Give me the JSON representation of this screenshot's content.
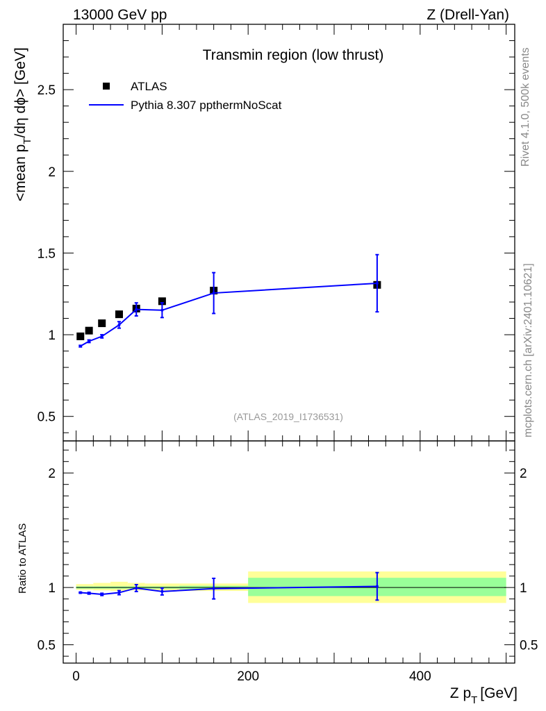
{
  "header": {
    "left_label": "13000 GeV pp",
    "right_label": "Z (Drell-Yan)"
  },
  "side_labels": {
    "rivet": "Rivet 4.1.0,  500k events",
    "mcplots": "mcplots.cern.ch [arXiv:2401.10621]"
  },
  "chart_data": {
    "type": "scatter",
    "title": "Transmin region (low thrust)",
    "analysis_id": "(ATLAS_2019_I1736531)",
    "xlabel": "Z p_T [GeV]",
    "xlabel_main": "Z p",
    "xlabel_sub": "T",
    "xlabel_unit": "[GeV]",
    "ylabel": "<mean p_T/dη dϕ> [GeV]",
    "ylabel_parts": [
      "<mean p",
      "T",
      "/dη dϕ> [GeV]"
    ],
    "xlim": [
      -15,
      510
    ],
    "ylim": [
      0.35,
      2.9
    ],
    "xticks": [
      0,
      200,
      400
    ],
    "xtick_labels": [
      "0",
      "200",
      "400"
    ],
    "yticks": [
      0.5,
      1,
      1.5,
      2,
      2.5
    ],
    "ytick_labels": [
      "0.5",
      "1",
      "1.5",
      "2",
      "2.5"
    ],
    "legend": {
      "position": "top-left",
      "entries": [
        "ATLAS",
        "Pythia 8.307 ppthermNoScat"
      ]
    },
    "series": [
      {
        "name": "ATLAS",
        "style": "markers",
        "x": [
          5,
          15,
          30,
          50,
          70,
          100,
          160,
          350
        ],
        "y": [
          0.99,
          1.025,
          1.07,
          1.125,
          1.16,
          1.205,
          1.27,
          1.305
        ]
      },
      {
        "name": "Pythia 8.307 ppthermNoScat",
        "style": "line",
        "x": [
          5,
          15,
          30,
          50,
          70,
          100,
          160,
          350
        ],
        "y": [
          0.93,
          0.96,
          0.99,
          1.06,
          1.155,
          1.15,
          1.255,
          1.315
        ],
        "err": [
          0.005,
          0.008,
          0.01,
          0.02,
          0.04,
          0.045,
          0.125,
          0.175
        ]
      }
    ],
    "ratio": {
      "ylabel": "Ratio to ATLAS",
      "ylim": [
        0.34,
        2.28
      ],
      "yticks": [
        0.5,
        1,
        2
      ],
      "ytick_labels": [
        "0.5",
        "1",
        "2"
      ],
      "bands": [
        {
          "x0": 0,
          "x1": 20,
          "inner": [
            0.99,
            1.01
          ],
          "outer": [
            0.98,
            1.03
          ]
        },
        {
          "x0": 20,
          "x1": 40,
          "inner": [
            0.99,
            1.01
          ],
          "outer": [
            0.975,
            1.04
          ]
        },
        {
          "x0": 40,
          "x1": 60,
          "inner": [
            0.99,
            1.01
          ],
          "outer": [
            0.97,
            1.05
          ]
        },
        {
          "x0": 60,
          "x1": 80,
          "inner": [
            0.99,
            1.01
          ],
          "outer": [
            0.975,
            1.04
          ]
        },
        {
          "x0": 80,
          "x1": 120,
          "inner": [
            0.99,
            1.01
          ],
          "outer": [
            0.975,
            1.035
          ]
        },
        {
          "x0": 120,
          "x1": 200,
          "inner": [
            0.985,
            1.015
          ],
          "outer": [
            0.97,
            1.035
          ]
        },
        {
          "x0": 200,
          "x1": 500,
          "inner": [
            0.925,
            1.085
          ],
          "outer": [
            0.865,
            1.14
          ]
        }
      ],
      "x": [
        5,
        15,
        30,
        50,
        70,
        100,
        160,
        350
      ],
      "y": [
        0.955,
        0.95,
        0.94,
        0.955,
        0.995,
        0.965,
        0.99,
        1.01
      ],
      "err": [
        0.005,
        0.008,
        0.01,
        0.018,
        0.03,
        0.03,
        0.09,
        0.12
      ]
    }
  }
}
